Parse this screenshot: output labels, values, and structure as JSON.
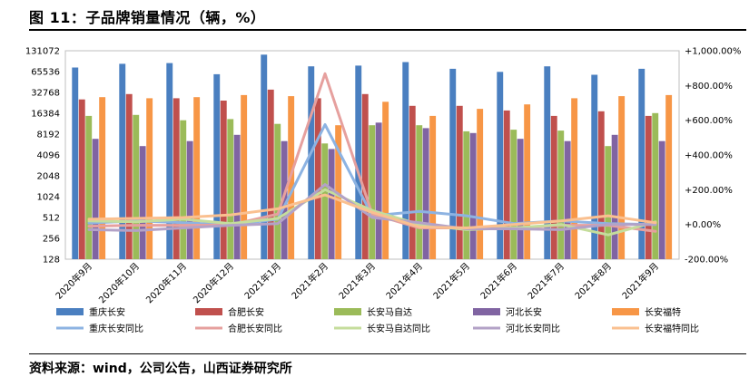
{
  "figure": {
    "title": "图 11：子品牌销量情况（辆，%）",
    "source": "资料来源：wind，公司公告，山西证券研究所"
  },
  "chart_data": {
    "type": "bar",
    "categories": [
      "2020年9月",
      "2020年10月",
      "2020年11月",
      "2020年12月",
      "2021年1月",
      "2021年2月",
      "2021年3月",
      "2021年4月",
      "2021年5月",
      "2021年6月",
      "2021年7月",
      "2021年8月",
      "2021年9月"
    ],
    "y_left": {
      "scale": "log2",
      "ticks": [
        128,
        256,
        512,
        1024,
        2048,
        4096,
        8192,
        16384,
        32768,
        65536,
        131072
      ]
    },
    "y_right": {
      "ticks": [
        "-200.00%",
        "+0.00%",
        "+200.00%",
        "+400.00%",
        "+600.00%",
        "+800.00%",
        "+1,000.00%"
      ],
      "min": -200,
      "max": 1000
    },
    "series": [
      {
        "name": "重庆长安",
        "color": "#4a7fc0",
        "values": [
          75000,
          85000,
          87000,
          60000,
          115000,
          78000,
          80000,
          90000,
          72000,
          65000,
          78000,
          59000,
          72000
        ]
      },
      {
        "name": "合肥长安",
        "color": "#c0504d",
        "values": [
          26000,
          31000,
          27000,
          25000,
          36000,
          27000,
          31000,
          21000,
          21000,
          18000,
          15000,
          17500,
          15000
        ]
      },
      {
        "name": "长安马自达",
        "color": "#9bbb59",
        "values": [
          15000,
          15500,
          13000,
          13500,
          11500,
          6000,
          11000,
          11000,
          9000,
          9500,
          9200,
          5500,
          16500
        ]
      },
      {
        "name": "河北长安",
        "color": "#8064a2",
        "values": [
          7000,
          5500,
          6500,
          8000,
          6500,
          5000,
          12000,
          10000,
          8500,
          7000,
          6500,
          8000,
          6500
        ]
      },
      {
        "name": "长安福特",
        "color": "#f79646",
        "values": [
          28000,
          27000,
          28000,
          30000,
          29000,
          11000,
          24000,
          15000,
          19000,
          22000,
          27000,
          29000,
          30000
        ]
      }
    ],
    "yoy_series": [
      {
        "name": "重庆长安同比",
        "color": "#8db3e2",
        "values": [
          8,
          20,
          10,
          -3,
          30,
          575,
          50,
          75,
          50,
          5,
          20,
          5,
          0
        ]
      },
      {
        "name": "合肥长安同比",
        "color": "#e6a09e",
        "values": [
          -10,
          -5,
          -5,
          -3,
          60,
          868,
          60,
          -20,
          -20,
          -20,
          -5,
          -5,
          -40
        ]
      },
      {
        "name": "长安马自达同比",
        "color": "#c5dd9c",
        "values": [
          20,
          15,
          30,
          5,
          35,
          200,
          80,
          0,
          -30,
          -20,
          0,
          -60,
          15
        ]
      },
      {
        "name": "河北长安同比",
        "color": "#b3a2c7",
        "values": [
          -30,
          -35,
          -20,
          -5,
          5,
          230,
          40,
          10,
          -25,
          -25,
          -30,
          0,
          0
        ]
      },
      {
        "name": "长安福特同比",
        "color": "#fac090",
        "values": [
          30,
          35,
          40,
          55,
          90,
          170,
          70,
          -15,
          -20,
          0,
          20,
          50,
          10
        ]
      }
    ]
  }
}
